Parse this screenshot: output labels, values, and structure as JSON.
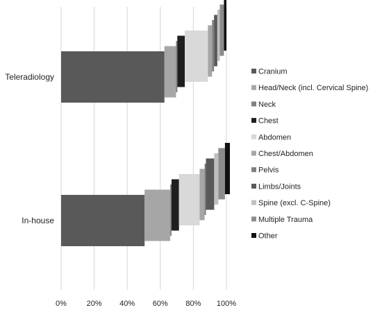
{
  "chart_data": {
    "type": "bar",
    "subtype": "stacked-horizontal-staggered",
    "title": "",
    "xlabel": "",
    "ylabel": "",
    "xlim": [
      0,
      100
    ],
    "x_ticks": [
      "0%",
      "20%",
      "40%",
      "60%",
      "80%",
      "100%"
    ],
    "grid": true,
    "legend_position": "right",
    "categories": [
      "Teleradiology",
      "In-house"
    ],
    "series": [
      {
        "name": "Cranium",
        "color": "#595959",
        "values": [
          62.5,
          50.5
        ]
      },
      {
        "name": "Head/Neck (incl. Cervical Spine)",
        "color": "#a6a6a6",
        "values": [
          7.0,
          15.5
        ]
      },
      {
        "name": "Neck",
        "color": "#7f7f7f",
        "values": [
          0.8,
          0.8
        ]
      },
      {
        "name": "Chest",
        "color": "#1f1f1f",
        "values": [
          4.5,
          4.5
        ]
      },
      {
        "name": "Abdomen",
        "color": "#d9d9d9",
        "values": [
          14.0,
          12.5
        ]
      },
      {
        "name": "Chest/Abdomen",
        "color": "#a6a6a6",
        "values": [
          2.5,
          3.0
        ]
      },
      {
        "name": "Pelvis",
        "color": "#7f7f7f",
        "values": [
          1.2,
          0.8
        ]
      },
      {
        "name": "Limbs/Joints",
        "color": "#595959",
        "values": [
          2.0,
          5.0
        ]
      },
      {
        "name": "Spine (excl. C-Spine)",
        "color": "#bfbfbf",
        "values": [
          1.5,
          2.5
        ]
      },
      {
        "name": "Multiple Trauma",
        "color": "#8c8c8c",
        "values": [
          2.5,
          4.0
        ]
      },
      {
        "name": "Other",
        "color": "#111111",
        "values": [
          1.5,
          3.0
        ]
      }
    ]
  }
}
